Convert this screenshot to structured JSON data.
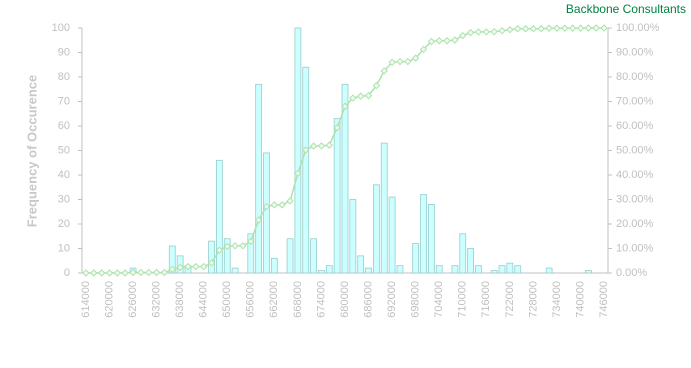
{
  "chart_data": {
    "type": "bar",
    "title": "Backbone Consultants",
    "y_label": "Frequency of Occurence",
    "categories": [
      "614000",
      null,
      null,
      "620000",
      null,
      null,
      "626000",
      null,
      null,
      "632000",
      null,
      null,
      "638000",
      null,
      null,
      "644000",
      null,
      null,
      "650000",
      null,
      null,
      "656000",
      null,
      null,
      "662000",
      null,
      null,
      "668000",
      null,
      null,
      "674000",
      null,
      null,
      "680000",
      null,
      null,
      "686000",
      null,
      null,
      "692000",
      null,
      null,
      "698000",
      null,
      null,
      "704000",
      null,
      null,
      "710000",
      null,
      null,
      "716000",
      null,
      null,
      "722000",
      null,
      null,
      "728000",
      null,
      null,
      "734000",
      null,
      null,
      "740000",
      null,
      null,
      "746000"
    ],
    "series": [
      {
        "color": "#ccffff",
        "values": [
          0,
          0,
          0,
          0,
          0,
          0,
          2,
          0,
          0,
          0,
          0,
          11,
          7,
          3,
          0,
          0,
          13,
          46,
          14,
          2,
          0,
          16,
          77,
          49,
          6,
          0,
          14,
          100,
          84,
          14,
          1,
          3,
          63,
          77,
          30,
          7,
          2,
          36,
          53,
          31,
          3,
          0,
          12,
          32,
          28,
          3,
          0,
          3,
          16,
          10,
          3,
          0,
          1,
          3,
          4,
          3,
          0,
          0,
          0,
          2,
          0,
          0,
          0,
          0,
          1,
          0,
          0
        ]
      },
      {
        "type": "line",
        "axis": "y2",
        "color": "#b0e0b0",
        "values": [
          0,
          0,
          0,
          0,
          0,
          0,
          0.2,
          0.2,
          0.2,
          0.2,
          0.2,
          1.5,
          2.3,
          2.6,
          2.6,
          2.6,
          4.1,
          9.3,
          10.8,
          11.1,
          11.1,
          12.9,
          21.6,
          27.1,
          27.8,
          27.8,
          29.4,
          40.7,
          50.2,
          51.8,
          51.9,
          52.2,
          59.3,
          68.0,
          71.4,
          72.2,
          72.4,
          76.5,
          82.5,
          86.0,
          86.3,
          86.3,
          87.7,
          91.3,
          94.5,
          94.8,
          94.8,
          95.1,
          96.9,
          98.1,
          98.4,
          98.4,
          98.5,
          98.9,
          99.3,
          99.7,
          99.7,
          99.7,
          99.7,
          99.9,
          99.9,
          99.9,
          99.9,
          99.9,
          100,
          100,
          100
        ]
      }
    ],
    "ylim": [
      0,
      100
    ],
    "yticks": [
      0,
      10,
      20,
      30,
      40,
      50,
      60,
      70,
      80,
      90,
      100
    ],
    "y2lim": [
      0,
      100
    ],
    "y2ticks": [
      {
        "value": 0,
        "label": "0.00%"
      },
      {
        "value": 10,
        "label": "10.00%"
      },
      {
        "value": 20,
        "label": "20.00%"
      },
      {
        "value": 30,
        "label": "30.00%"
      },
      {
        "value": 40,
        "label": "40.00%"
      },
      {
        "value": 50,
        "label": "50.00%"
      },
      {
        "value": 60,
        "label": "60.00%"
      },
      {
        "value": 70,
        "label": "70.00%"
      },
      {
        "value": 80,
        "label": "80.00%"
      },
      {
        "value": 90,
        "label": "90.00%"
      },
      {
        "value": 100,
        "label": "100.00%"
      }
    ],
    "grid": false
  }
}
